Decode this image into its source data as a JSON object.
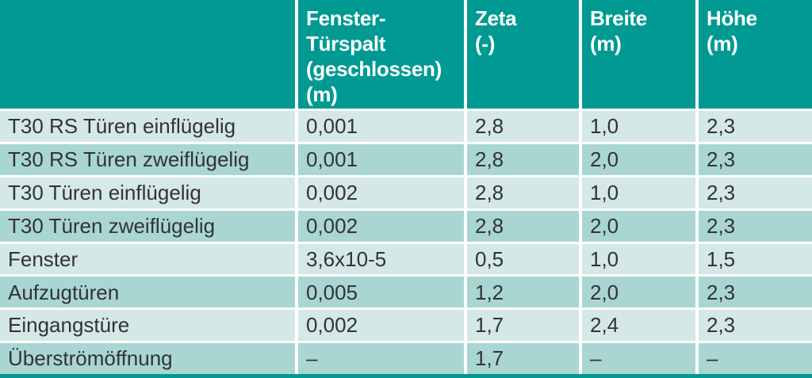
{
  "colors": {
    "header_teal": "#009A93",
    "row_light": "#D4E8E5",
    "row_dark": "#A9D6D2",
    "separator": "#FFFFFF",
    "header_text": "#FFFFFF",
    "body_text": "#333333"
  },
  "table": {
    "header_display": [
      "",
      "Fenster-\nTürspalt\n(geschlossen)\n(m)",
      "Zeta\n(-)",
      "Breite\n(m)",
      "Höhe\n(m)"
    ]
  },
  "chart_data": {
    "type": "table",
    "title": "",
    "columns": [
      "",
      "Fenster-Türspalt (geschlossen) (m)",
      "Zeta (-)",
      "Breite (m)",
      "Höhe (m)"
    ],
    "rows": [
      [
        "T30 RS Türen einflügelig",
        "0,001",
        "2,8",
        "1,0",
        "2,3"
      ],
      [
        "T30 RS Türen zweiflügelig",
        "0,001",
        "2,8",
        "2,0",
        "2,3"
      ],
      [
        "T30 Türen einflügelig",
        "0,002",
        "2,8",
        "1,0",
        "2,3"
      ],
      [
        "T30 Türen zweiflügelig",
        "0,002",
        "2,8",
        "2,0",
        "2,3"
      ],
      [
        "Fenster",
        "3,6x10-5",
        "0,5",
        "1,0",
        "1,5"
      ],
      [
        "Aufzugtüren",
        "0,005",
        "1,2",
        "2,0",
        "2,3"
      ],
      [
        "Eingangstüre",
        "0,002",
        "1,7",
        "2,4",
        "2,3"
      ],
      [
        "Überströmöffnung",
        "–",
        "1,7",
        "–",
        "–"
      ]
    ]
  }
}
